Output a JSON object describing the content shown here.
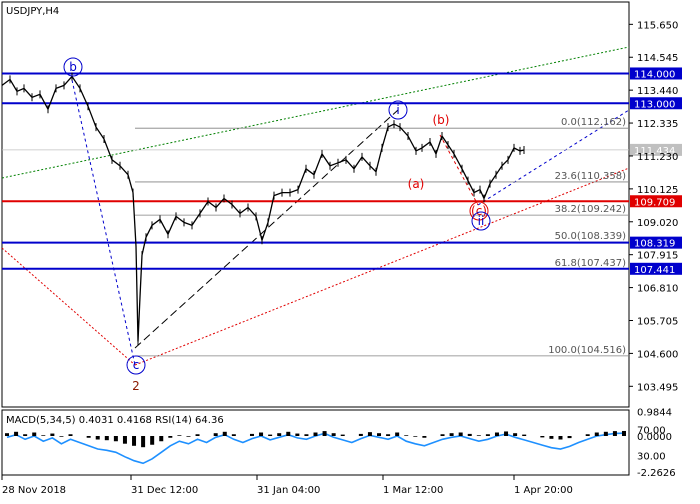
{
  "chart_data": {
    "type": "line",
    "title": "USDJPY,H4",
    "price_axis": {
      "ticks": [
        "115.650",
        "114.545",
        "113.440",
        "112.335",
        "111.230",
        "110.125",
        "109.020",
        "107.915",
        "106.810",
        "105.705",
        "104.600",
        "103.495"
      ],
      "ylim": [
        102.8,
        116.4
      ]
    },
    "time_axis": {
      "ticks": [
        "28 Nov 2018",
        "31 Dec 12:00",
        "31 Jan 04:00",
        "1 Mar 12:00",
        "1 Apr 20:00"
      ]
    },
    "price_series": [
      [
        0,
        113.6
      ],
      [
        8,
        113.8
      ],
      [
        15,
        113.4
      ],
      [
        22,
        113.5
      ],
      [
        30,
        113.2
      ],
      [
        38,
        113.3
      ],
      [
        46,
        112.8
      ],
      [
        54,
        113.5
      ],
      [
        62,
        113.6
      ],
      [
        70,
        113.9
      ],
      [
        78,
        113.5
      ],
      [
        86,
        112.9
      ],
      [
        94,
        112.2
      ],
      [
        102,
        111.8
      ],
      [
        110,
        111.1
      ],
      [
        118,
        110.9
      ],
      [
        126,
        110.6
      ],
      [
        131,
        110.0
      ],
      [
        134,
        108.2
      ],
      [
        136,
        105.0
      ],
      [
        138,
        106.5
      ],
      [
        140,
        107.9
      ],
      [
        144,
        108.5
      ],
      [
        150,
        108.9
      ],
      [
        158,
        109.1
      ],
      [
        166,
        108.6
      ],
      [
        174,
        109.2
      ],
      [
        182,
        109.0
      ],
      [
        190,
        108.9
      ],
      [
        198,
        109.3
      ],
      [
        206,
        109.7
      ],
      [
        214,
        109.5
      ],
      [
        222,
        109.8
      ],
      [
        230,
        109.6
      ],
      [
        238,
        109.3
      ],
      [
        246,
        109.5
      ],
      [
        254,
        109.2
      ],
      [
        260,
        108.4
      ],
      [
        266,
        109.0
      ],
      [
        272,
        109.9
      ],
      [
        280,
        110.0
      ],
      [
        288,
        110.0
      ],
      [
        296,
        110.1
      ],
      [
        304,
        110.8
      ],
      [
        312,
        110.6
      ],
      [
        320,
        111.3
      ],
      [
        328,
        110.9
      ],
      [
        336,
        111.0
      ],
      [
        344,
        111.1
      ],
      [
        352,
        110.8
      ],
      [
        360,
        111.2
      ],
      [
        368,
        110.9
      ],
      [
        374,
        110.7
      ],
      [
        380,
        111.5
      ],
      [
        386,
        112.2
      ],
      [
        392,
        112.3
      ],
      [
        398,
        112.2
      ],
      [
        406,
        111.9
      ],
      [
        414,
        111.4
      ],
      [
        420,
        111.5
      ],
      [
        428,
        111.7
      ],
      [
        434,
        111.3
      ],
      [
        440,
        111.9
      ],
      [
        446,
        111.6
      ],
      [
        452,
        111.3
      ],
      [
        460,
        110.8
      ],
      [
        466,
        110.4
      ],
      [
        472,
        110.0
      ],
      [
        478,
        110.1
      ],
      [
        482,
        109.8
      ],
      [
        488,
        110.3
      ],
      [
        494,
        110.6
      ],
      [
        500,
        110.9
      ],
      [
        506,
        111.1
      ],
      [
        512,
        111.5
      ],
      [
        518,
        111.4
      ],
      [
        522,
        111.43
      ]
    ],
    "fibonacci_levels": [
      {
        "label": "0.0(112.162)",
        "value": 112.162
      },
      {
        "label": "23.6(110.358)",
        "value": 110.358
      },
      {
        "label": "38.2(109.242)",
        "value": 109.242
      },
      {
        "label": "50.0(108.339)",
        "value": 108.339
      },
      {
        "label": "61.8(107.437)",
        "value": 107.437
      },
      {
        "label": "100.0(104.516)",
        "value": 104.516
      }
    ],
    "horizontal_levels": [
      {
        "label": "114.000",
        "value": 114.0,
        "color": "#0000cc"
      },
      {
        "label": "113.000",
        "value": 113.0,
        "color": "#0000cc"
      },
      {
        "label": "109.709",
        "value": 109.709,
        "color": "#e00000"
      },
      {
        "label": "108.319",
        "value": 108.319,
        "color": "#0000cc"
      },
      {
        "label": "107.441",
        "value": 107.441,
        "color": "#0000cc"
      }
    ],
    "current_price": {
      "label": "111.434",
      "value": 111.434,
      "color": "#c0c0c0"
    },
    "wave_labels": [
      {
        "text": "b",
        "circled": true,
        "color": "#0000cc"
      },
      {
        "text": "c",
        "circled": true,
        "color": "#0000cc"
      },
      {
        "text": "2",
        "circled": false,
        "color": "#8b1a00"
      },
      {
        "text": "i",
        "circled": true,
        "color": "#0000cc"
      },
      {
        "text": "(b)",
        "circled": false,
        "color": "#e00000"
      },
      {
        "text": "(a)",
        "circled": false,
        "color": "#e00000"
      },
      {
        "text": "(c)",
        "circled": true,
        "color": "#e00000"
      },
      {
        "text": "ii",
        "circled": true,
        "color": "#0000cc"
      }
    ],
    "indicator": {
      "label": "MACD(5,34,5) 0.4031 0.4168 RSI(14) 64.36",
      "ticks": [
        "0.9844",
        "70.00",
        "0.0000",
        "30.00",
        "-2.2626"
      ]
    },
    "colors": {
      "candles": "#000000",
      "support_resistance": "#0000cc",
      "key_level": "#e00000",
      "fibonacci": "#808080",
      "rsi": "#1e90ff",
      "macd": "#000000",
      "upper_channel": "#008000",
      "lower_channel": "#e00000"
    }
  }
}
